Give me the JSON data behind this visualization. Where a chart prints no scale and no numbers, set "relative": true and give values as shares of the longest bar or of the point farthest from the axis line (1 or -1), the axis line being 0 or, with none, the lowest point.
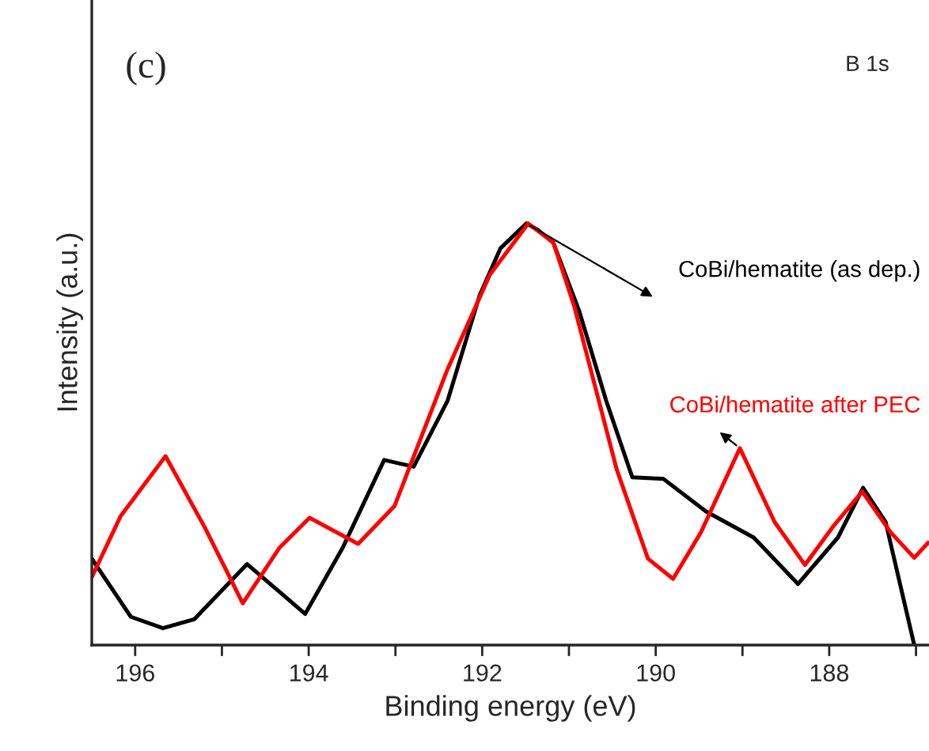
{
  "chart_data": {
    "type": "line",
    "relative": true,
    "xlabel": "Binding energy (eV)",
    "ylabel": "Intensity (a.u.)",
    "annotations": [
      "(c)",
      "B 1s"
    ],
    "xlim": [
      196.5,
      186.85
    ],
    "xticks": [
      196,
      {
        "value": 195,
        "label": null
      },
      194,
      {
        "value": 193,
        "label": null
      },
      192,
      {
        "value": 191,
        "label": null
      },
      190,
      {
        "value": 189,
        "label": null
      },
      188,
      {
        "value": 187,
        "label": null
      }
    ],
    "series": [
      {
        "name": "CoBi/hematite (as dep.)",
        "color": "#000000",
        "x": [
          196.5,
          196.05,
          195.68,
          195.32,
          194.71,
          194.04,
          193.61,
          193.13,
          192.79,
          192.4,
          192.03,
          191.79,
          191.49,
          191.36,
          191.18,
          190.88,
          190.57,
          190.27,
          189.91,
          189.42,
          188.87,
          188.36,
          187.9,
          187.61,
          187.35,
          187.02
        ],
        "values": [
          0.205,
          0.067,
          0.04,
          0.061,
          0.192,
          0.074,
          0.23,
          0.439,
          0.423,
          0.579,
          0.829,
          0.941,
          1.0,
          0.985,
          0.954,
          0.791,
          0.579,
          0.398,
          0.394,
          0.317,
          0.255,
          0.145,
          0.255,
          0.373,
          0.292,
          0.0
        ]
      },
      {
        "name": "CoBi/hematite after PEC",
        "color": "#ff0000",
        "x": [
          196.5,
          196.17,
          195.65,
          195.2,
          194.76,
          194.34,
          193.99,
          193.43,
          193.01,
          192.4,
          191.91,
          191.47,
          191.18,
          190.94,
          190.45,
          190.09,
          189.8,
          189.48,
          189.03,
          188.63,
          188.28,
          187.96,
          187.62,
          187.29,
          187.02,
          186.86
        ],
        "values": [
          0.161,
          0.305,
          0.448,
          0.28,
          0.099,
          0.23,
          0.302,
          0.24,
          0.33,
          0.654,
          0.879,
          1.0,
          0.955,
          0.804,
          0.417,
          0.205,
          0.157,
          0.267,
          0.467,
          0.292,
          0.19,
          0.28,
          0.364,
          0.267,
          0.207,
          0.243
        ]
      }
    ],
    "grid": false,
    "legend": false,
    "tick_labels": "x"
  }
}
